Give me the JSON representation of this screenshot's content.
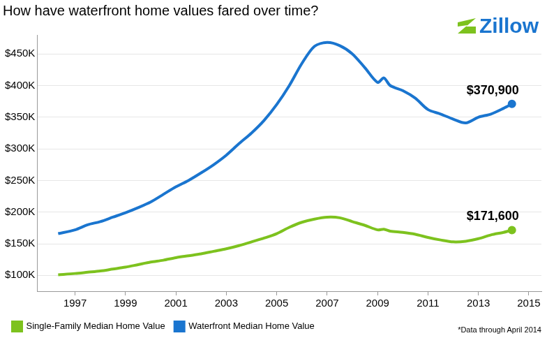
{
  "chart_data": {
    "type": "line",
    "title": "How have waterfront home values fared over time?",
    "logo": "Zillow",
    "note": "*Data through April 2014",
    "x": [
      1996.33,
      1997.0,
      1997.5,
      1998.0,
      1998.5,
      1999.0,
      1999.5,
      2000.0,
      2000.5,
      2001.0,
      2001.5,
      2002.0,
      2002.5,
      2003.0,
      2003.5,
      2004.0,
      2004.5,
      2005.0,
      2005.5,
      2006.0,
      2006.5,
      2007.0,
      2007.5,
      2008.0,
      2008.5,
      2009.0,
      2009.25,
      2009.5,
      2010.0,
      2010.5,
      2011.0,
      2011.5,
      2012.0,
      2012.5,
      2013.0,
      2013.5,
      2014.0,
      2014.33
    ],
    "series": [
      {
        "name": "Single-Family Median Home Value",
        "color": "#7dc21e",
        "values": [
          101000,
          103000,
          105000,
          107000,
          110000,
          113000,
          117000,
          121000,
          124000,
          128000,
          131000,
          134000,
          138000,
          142000,
          147000,
          153000,
          159000,
          166000,
          176000,
          184000,
          189000,
          192000,
          191000,
          185000,
          179000,
          172000,
          173000,
          170000,
          168000,
          165000,
          160000,
          156000,
          153000,
          154000,
          158000,
          164000,
          168000,
          171600
        ]
      },
      {
        "name": "Waterfront Median Home Value",
        "color": "#1a75cf",
        "values": [
          166000,
          172000,
          180000,
          185000,
          192000,
          199000,
          207000,
          216000,
          228000,
          240000,
          250000,
          262000,
          275000,
          290000,
          308000,
          325000,
          345000,
          370000,
          400000,
          435000,
          462000,
          468000,
          463000,
          450000,
          428000,
          405000,
          412000,
          400000,
          392000,
          380000,
          362000,
          355000,
          347000,
          341000,
          350000,
          355000,
          364000,
          370900
        ]
      }
    ],
    "annotations": [
      {
        "text": "$370,900",
        "x": 2014.33,
        "y": 370900
      },
      {
        "text": "$171,600",
        "x": 2014.33,
        "y": 171600
      }
    ],
    "xlim": [
      1995.5,
      2015.5
    ],
    "xticks": [
      1997,
      1999,
      2001,
      2003,
      2005,
      2007,
      2009,
      2011,
      2013,
      2015
    ],
    "ylim": [
      75000,
      480000
    ],
    "yticks": [
      {
        "value": 100000,
        "label": "$100K"
      },
      {
        "value": 150000,
        "label": "$150K"
      },
      {
        "value": 200000,
        "label": "$200K"
      },
      {
        "value": 250000,
        "label": "$250K"
      },
      {
        "value": 300000,
        "label": "$300K"
      },
      {
        "value": 350000,
        "label": "$350K"
      },
      {
        "value": 400000,
        "label": "$400K"
      },
      {
        "value": 450000,
        "label": "$450K"
      }
    ],
    "grid": true,
    "legend": "bottom"
  }
}
